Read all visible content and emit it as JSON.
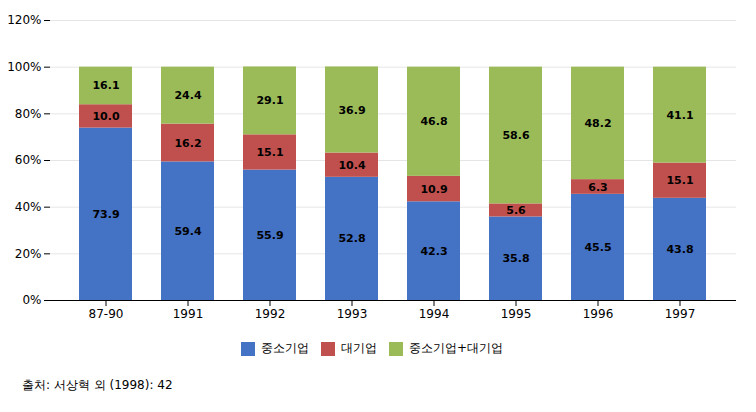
{
  "chart_data": {
    "type": "bar",
    "stacked": true,
    "categories": [
      "87-90",
      "1991",
      "1992",
      "1993",
      "1994",
      "1995",
      "1996",
      "1997"
    ],
    "series": [
      {
        "name": "중소기업",
        "color": "#4472C4",
        "values": [
          73.9,
          59.4,
          55.9,
          52.8,
          42.3,
          35.8,
          45.5,
          43.8
        ],
        "value_labels": [
          "73.9",
          "59.4",
          "55.9",
          "52.8",
          "42.3",
          "35.8",
          "45.5",
          "43.8"
        ]
      },
      {
        "name": "대기업",
        "color": "#C0504D",
        "values": [
          10.0,
          16.2,
          15.1,
          10.4,
          10.9,
          5.6,
          6.3,
          15.1
        ],
        "value_labels": [
          "10.0",
          "16.2",
          "15.1",
          "10.4",
          "10.9",
          "5.6",
          "6.3",
          "15.1"
        ]
      },
      {
        "name": "중소기업+대기업",
        "color": "#9BBB59",
        "values": [
          16.1,
          24.4,
          29.1,
          36.9,
          46.8,
          58.6,
          48.2,
          41.1
        ],
        "value_labels": [
          "16.1",
          "24.4",
          "29.1",
          "36.9",
          "46.8",
          "58.6",
          "48.2",
          "41.1"
        ]
      }
    ],
    "ylim": [
      0,
      120
    ],
    "yticks": [
      {
        "value": 0,
        "label": "0%"
      },
      {
        "value": 20,
        "label": "20%"
      },
      {
        "value": 40,
        "label": "40%"
      },
      {
        "value": 60,
        "label": "60%"
      },
      {
        "value": 80,
        "label": "80%"
      },
      {
        "value": 100,
        "label": "100%"
      },
      {
        "value": 120,
        "label": "120%"
      }
    ],
    "grid": true,
    "data_labels": true,
    "legend": "bottom",
    "caption": "출처:  서상혁 외 (1998):  42"
  }
}
